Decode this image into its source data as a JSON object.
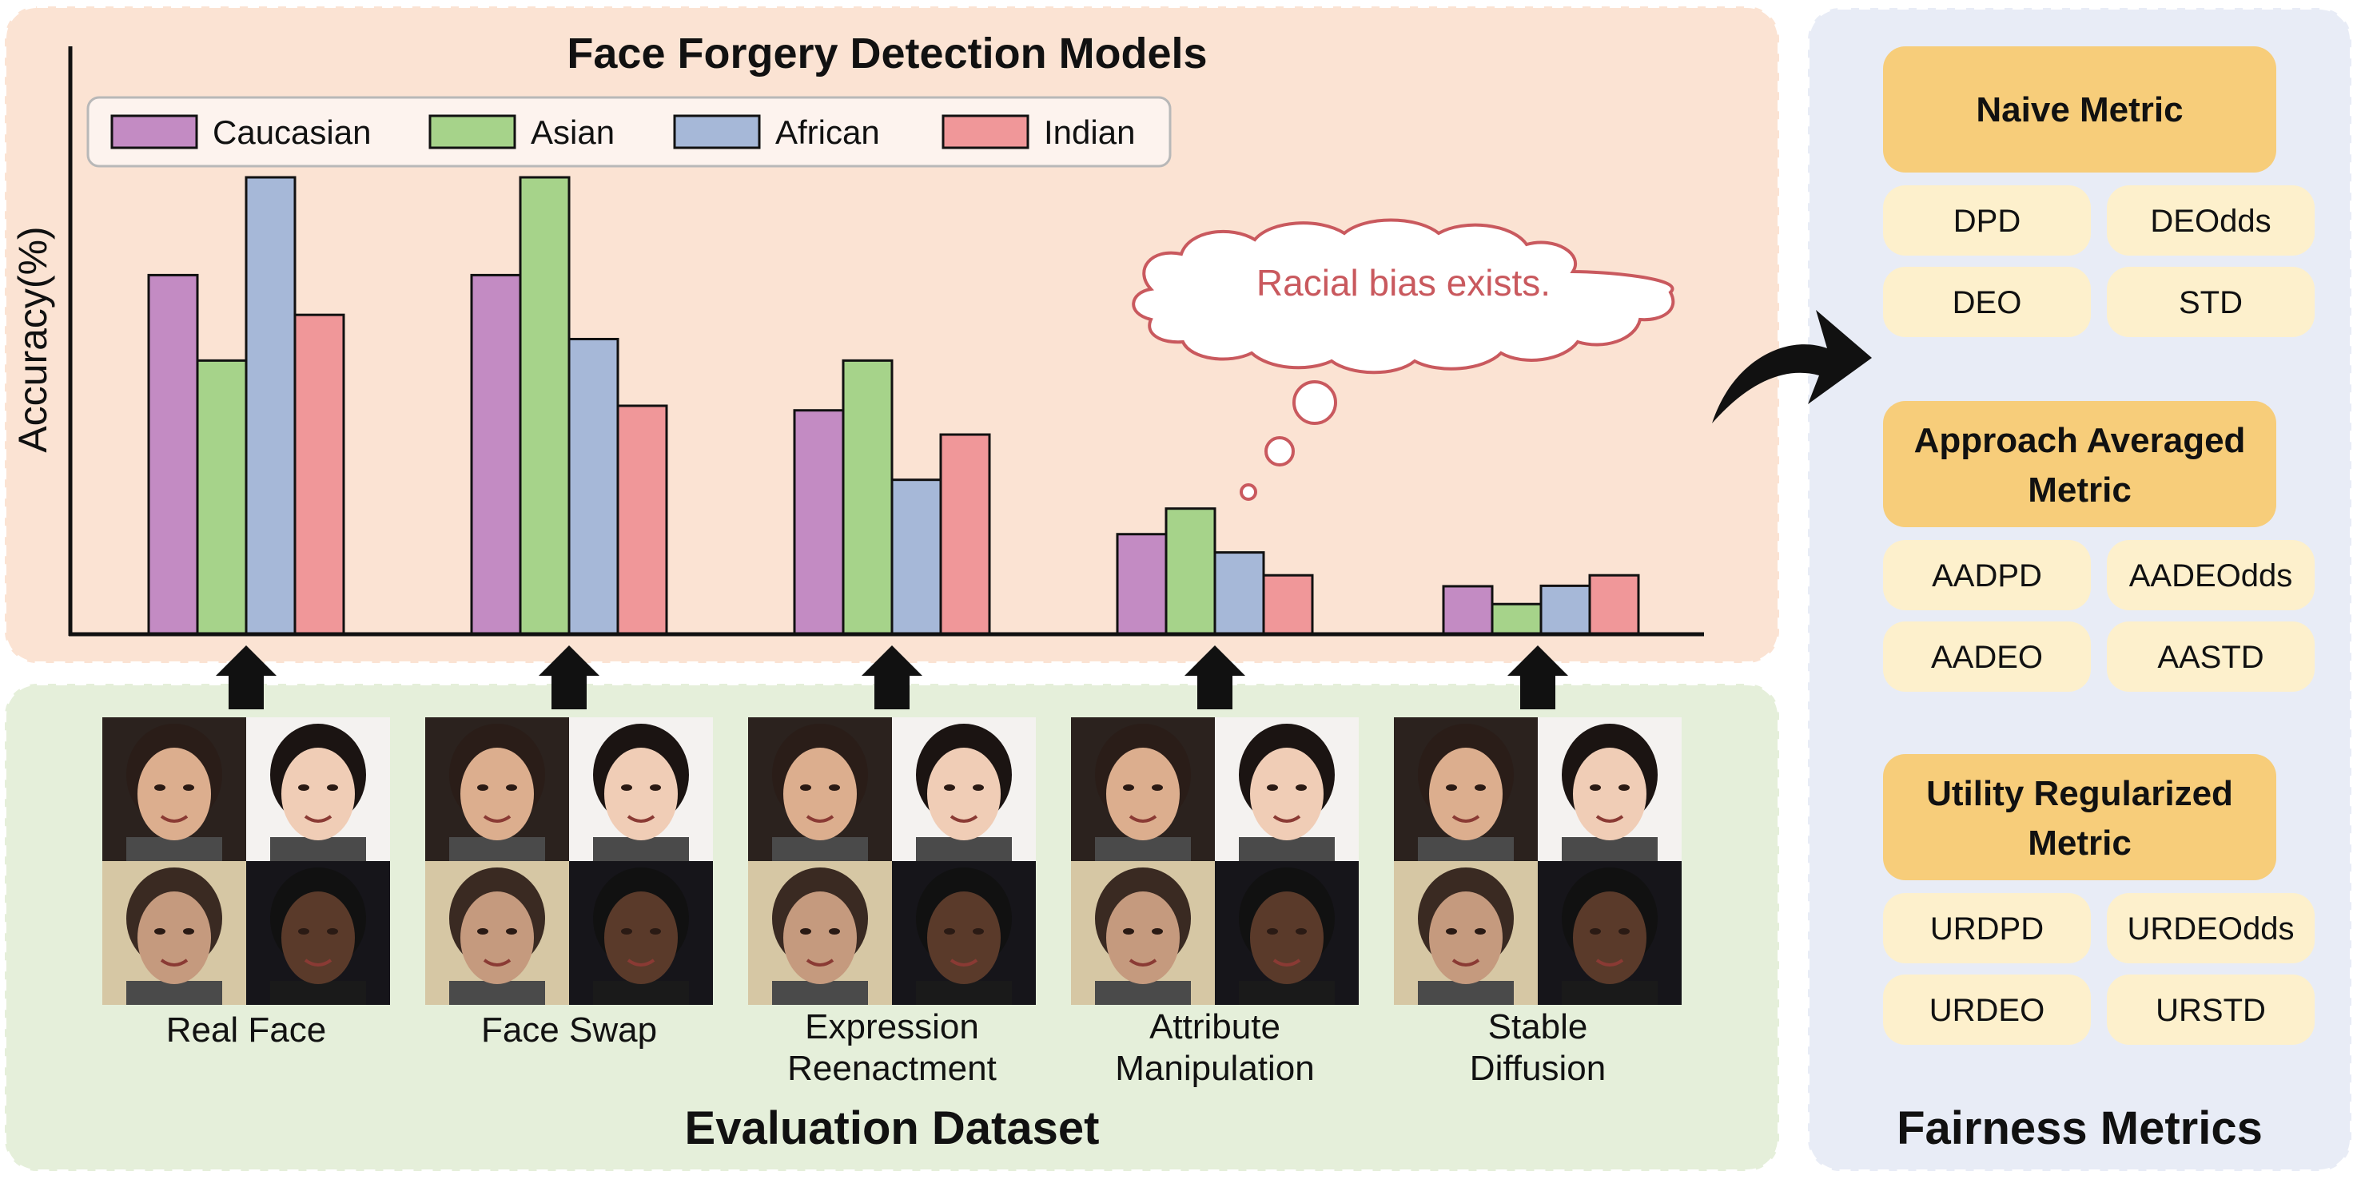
{
  "chart_data": {
    "type": "bar",
    "title": "Face Forgery Detection Models",
    "ylabel": "Accuracy(%)",
    "xlabel": "",
    "ylim": [
      0,
      100
    ],
    "legend_position": "top-left",
    "categories": [
      "Real Face",
      "Face Swap",
      "Expression Reenactment",
      "Attribute Manipulation",
      "Stable Diffusion"
    ],
    "series": [
      {
        "name": "Caucasian",
        "color": "#c38bc3",
        "values": [
          78.6,
          78.6,
          49.0,
          21.9,
          10.5
        ]
      },
      {
        "name": "Asian",
        "color": "#a6d38a",
        "values": [
          59.9,
          100.0,
          59.9,
          27.5,
          6.6
        ]
      },
      {
        "name": "African",
        "color": "#a6b8d8",
        "values": [
          100.0,
          64.6,
          33.8,
          17.9,
          10.6
        ]
      },
      {
        "name": "Indian",
        "color": "#f09799",
        "values": [
          69.9,
          50.0,
          43.7,
          12.9,
          12.9
        ]
      }
    ]
  },
  "thought": {
    "text": "Racial bias exists."
  },
  "dataset": {
    "title": "Evaluation Dataset",
    "groups": [
      {
        "label_lines": [
          "Real Face"
        ]
      },
      {
        "label_lines": [
          "Face Swap"
        ]
      },
      {
        "label_lines": [
          "Expression",
          "Reenactment"
        ]
      },
      {
        "label_lines": [
          "Attribute",
          "Manipulation"
        ]
      },
      {
        "label_lines": [
          "Stable",
          "Diffusion"
        ]
      }
    ]
  },
  "metrics": {
    "title": "Fairness Metrics",
    "groups": [
      {
        "title_lines": [
          "Naive Metric"
        ],
        "items": [
          "DPD",
          "DEOdds",
          "DEO",
          "STD"
        ]
      },
      {
        "title_lines": [
          "Approach Averaged",
          "Metric"
        ],
        "items": [
          "AADPD",
          "AADEOdds",
          "AADEO",
          "AASTD"
        ]
      },
      {
        "title_lines": [
          "Utility Regularized",
          "Metric"
        ],
        "items": [
          "URDPD",
          "URDEOdds",
          "URDEO",
          "URSTD"
        ]
      }
    ]
  },
  "colors": {
    "chart_panel": "#fbe3d3",
    "dataset_panel": "#e5efda",
    "metrics_panel": "#e8ecf6",
    "metric_header": "#f7cd7a",
    "metric_item": "#fdf0cc",
    "thought_text": "#c9595e",
    "arrow": "#111111"
  }
}
